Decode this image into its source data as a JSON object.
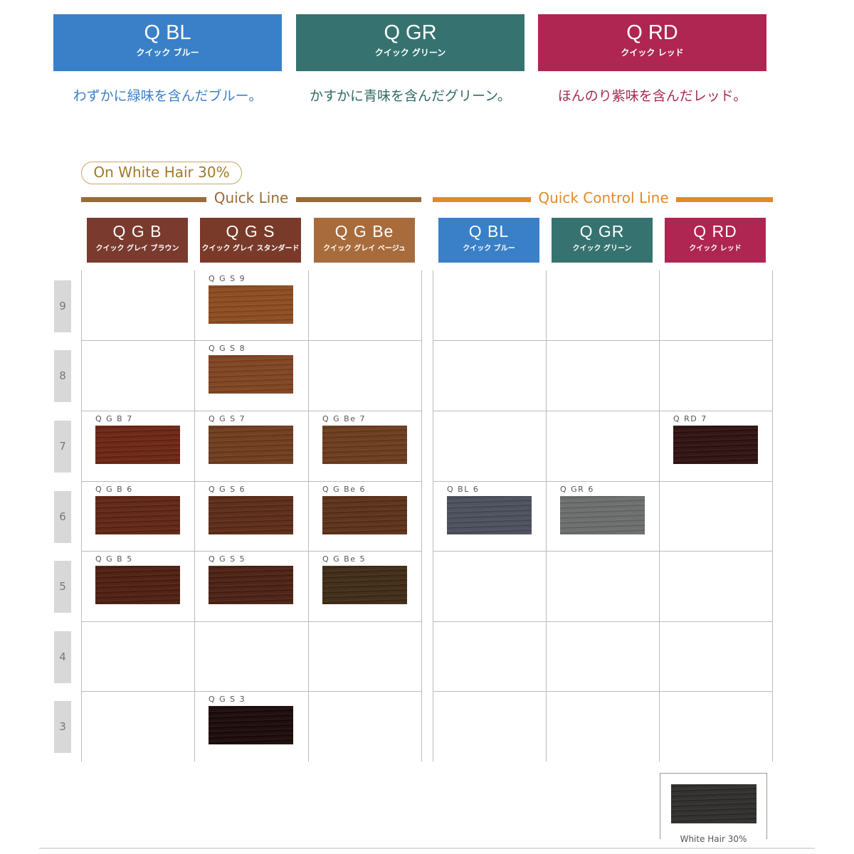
{
  "top_cards": [
    {
      "code": "Q BL",
      "kana": "クイック ブルー",
      "desc": "わずかに緑味を含んだブルー。",
      "color": "#3a80c8",
      "text_color": "#3a80c8"
    },
    {
      "code": "Q GR",
      "kana": "クイック グリーン",
      "desc": "かすかに青味を含んだグリーン。",
      "color": "#367370",
      "text_color": "#2f6a66"
    },
    {
      "code": "Q RD",
      "kana": "クイック レッド",
      "desc": "ほんのり紫味を含んだレッド。",
      "color": "#ae2651",
      "text_color": "#a82a50"
    }
  ],
  "badge": "On White Hair 30%",
  "lines": [
    {
      "title": "Quick Line",
      "color": "#9a6a3a"
    },
    {
      "title": "Quick Control Line",
      "color": "#e08a2a"
    }
  ],
  "columns": [
    {
      "code": "Q G B",
      "kana": "クイック グレイ ブラウン",
      "color": "#7a3a2e"
    },
    {
      "code": "Q G S",
      "kana": "クイック グレイ スタンダード",
      "color": "#7a3a2a"
    },
    {
      "code": "Q G Be",
      "kana": "クイック グレイ ベージュ",
      "color": "#a86c3c"
    },
    {
      "code": "Q BL",
      "kana": "クイック ブルー",
      "color": "#3a80c8"
    },
    {
      "code": "Q GR",
      "kana": "クイック グリーン",
      "color": "#367370"
    },
    {
      "code": "Q RD",
      "kana": "クイック レッド",
      "color": "#ae2651"
    }
  ],
  "levels": [
    "9",
    "8",
    "7",
    "6",
    "5",
    "4",
    "3"
  ],
  "swatches": [
    {
      "label": "Q G S 9",
      "col": 1,
      "level": "9",
      "color": "#8a4a1e"
    },
    {
      "label": "Q G S 8",
      "col": 1,
      "level": "8",
      "color": "#7e4220"
    },
    {
      "label": "Q G B 7",
      "col": 0,
      "level": "7",
      "color": "#6a2412"
    },
    {
      "label": "Q G S 7",
      "col": 1,
      "level": "7",
      "color": "#6e3a1c"
    },
    {
      "label": "Q G Be 7",
      "col": 2,
      "level": "7",
      "color": "#6a3a1c"
    },
    {
      "label": "Q RD 7",
      "col": 5,
      "level": "7",
      "color": "#2e1010"
    },
    {
      "label": "Q G B 6",
      "col": 0,
      "level": "6",
      "color": "#5e2414"
    },
    {
      "label": "Q G S 6",
      "col": 1,
      "level": "6",
      "color": "#5a2a16"
    },
    {
      "label": "Q G Be 6",
      "col": 2,
      "level": "6",
      "color": "#5a3018"
    },
    {
      "label": "Q BL 6",
      "col": 3,
      "level": "6",
      "color": "#4a4e5c"
    },
    {
      "label": "Q GR 6",
      "col": 4,
      "level": "6",
      "color": "#6a6c6c"
    },
    {
      "label": "Q G B 5",
      "col": 0,
      "level": "5",
      "color": "#4d1d10"
    },
    {
      "label": "Q G S 5",
      "col": 1,
      "level": "5",
      "color": "#4a1f12"
    },
    {
      "label": "Q G Be 5",
      "col": 2,
      "level": "5",
      "color": "#3e2a16"
    },
    {
      "label": "Q G S 3",
      "col": 1,
      "level": "3",
      "color": "#1a0808"
    }
  ],
  "white_hair": {
    "label": "White Hair 30%",
    "color": "#2e2c2a"
  }
}
